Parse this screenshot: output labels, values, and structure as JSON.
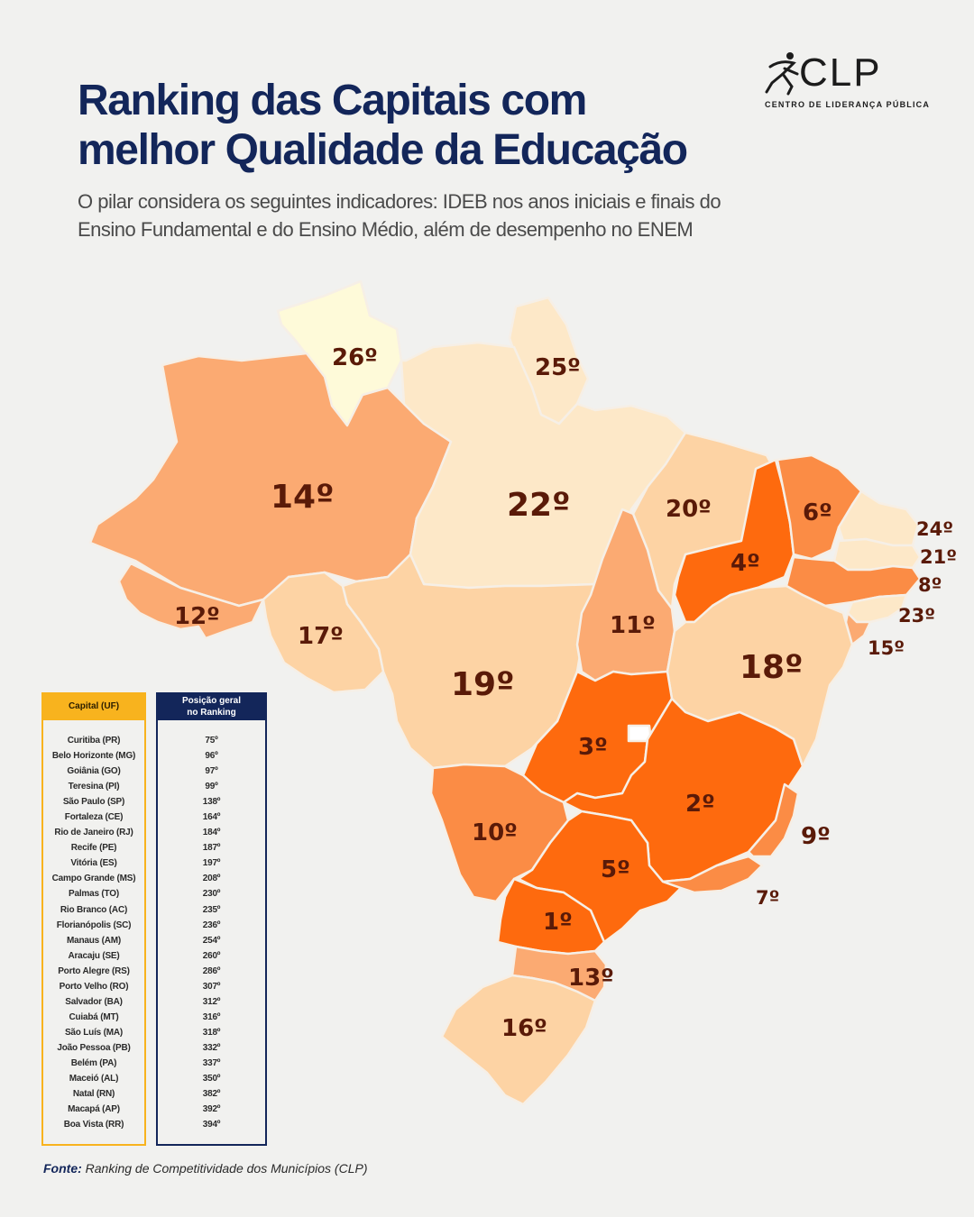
{
  "title_lines": [
    "Ranking das Capitais com",
    "melhor Qualidade da Educação"
  ],
  "subtitle_lines": [
    "O pilar considera os seguintes indicadores: IDEB nos anos iniciais e finais do",
    "Ensino Fundamental e do Ensino Médio, além de desempenho no ENEM"
  ],
  "logo": {
    "name": "CLP",
    "tagline": "CENTRO DE LIDERANÇA PÚBLICA",
    "icon": "runner-icon"
  },
  "colors": {
    "rank_1_5": "#fe6a0e",
    "rank_6_10": "#fb8c45",
    "rank_11_15": "#fbaa72",
    "rank_16_20": "#fdd3a4",
    "rank_21_25": "#fde8c8",
    "rank_26": "#fefad9",
    "table_capital_header": "#f8b31e",
    "table_position_header": "#13265a",
    "rank_label": "#5a1a08"
  },
  "map": {
    "states": [
      {
        "uf": "RR",
        "rank": "26º"
      },
      {
        "uf": "AP",
        "rank": "25º"
      },
      {
        "uf": "AM",
        "rank": "14º"
      },
      {
        "uf": "PA",
        "rank": "22º"
      },
      {
        "uf": "MA",
        "rank": "20º"
      },
      {
        "uf": "CE",
        "rank": "6º"
      },
      {
        "uf": "RN",
        "rank": "24º"
      },
      {
        "uf": "PB",
        "rank": "21º"
      },
      {
        "uf": "PE",
        "rank": "8º"
      },
      {
        "uf": "AL",
        "rank": "23º"
      },
      {
        "uf": "SE",
        "rank": "15º"
      },
      {
        "uf": "PI",
        "rank": "4º"
      },
      {
        "uf": "AC",
        "rank": "12º"
      },
      {
        "uf": "RO",
        "rank": "17º"
      },
      {
        "uf": "MT",
        "rank": "19º"
      },
      {
        "uf": "TO",
        "rank": "11º"
      },
      {
        "uf": "BA",
        "rank": "18º"
      },
      {
        "uf": "GO",
        "rank": "3º"
      },
      {
        "uf": "MG",
        "rank": "2º"
      },
      {
        "uf": "ES",
        "rank": "9º"
      },
      {
        "uf": "MS",
        "rank": "10º"
      },
      {
        "uf": "SP",
        "rank": "5º"
      },
      {
        "uf": "RJ",
        "rank": "7º"
      },
      {
        "uf": "PR",
        "rank": "1º"
      },
      {
        "uf": "SC",
        "rank": "13º"
      },
      {
        "uf": "RS",
        "rank": "16º"
      }
    ]
  },
  "table": {
    "headers": {
      "capital": "Capital (UF)",
      "position_line1": "Posição geral",
      "position_line2": "no Ranking"
    },
    "rows": [
      {
        "capital": "Curitiba (PR)",
        "position": "75º"
      },
      {
        "capital": "Belo Horizonte (MG)",
        "position": "96º"
      },
      {
        "capital": "Goiânia (GO)",
        "position": "97º"
      },
      {
        "capital": "Teresina (PI)",
        "position": "99º"
      },
      {
        "capital": "São Paulo (SP)",
        "position": "138º"
      },
      {
        "capital": "Fortaleza (CE)",
        "position": "164º"
      },
      {
        "capital": "Rio de Janeiro (RJ)",
        "position": "184º"
      },
      {
        "capital": "Recife (PE)",
        "position": "187º"
      },
      {
        "capital": "Vitória (ES)",
        "position": "197º"
      },
      {
        "capital": "Campo Grande (MS)",
        "position": "208º"
      },
      {
        "capital": "Palmas (TO)",
        "position": "230º"
      },
      {
        "capital": "Rio Branco (AC)",
        "position": "235º"
      },
      {
        "capital": "Florianópolis (SC)",
        "position": "236º"
      },
      {
        "capital": "Manaus (AM)",
        "position": "254º"
      },
      {
        "capital": "Aracaju (SE)",
        "position": "260º"
      },
      {
        "capital": "Porto Alegre (RS)",
        "position": "286º"
      },
      {
        "capital": "Porto Velho (RO)",
        "position": "307º"
      },
      {
        "capital": "Salvador (BA)",
        "position": "312º"
      },
      {
        "capital": "Cuiabá (MT)",
        "position": "316º"
      },
      {
        "capital": "São Luís (MA)",
        "position": "318º"
      },
      {
        "capital": "João Pessoa (PB)",
        "position": "332º"
      },
      {
        "capital": "Belém (PA)",
        "position": "337º"
      },
      {
        "capital": "Maceió (AL)",
        "position": "350º"
      },
      {
        "capital": "Natal (RN)",
        "position": "382º"
      },
      {
        "capital": "Macapá (AP)",
        "position": "392º"
      },
      {
        "capital": "Boa Vista (RR)",
        "position": "394º"
      }
    ]
  },
  "source": {
    "label": "Fonte:",
    "text": "Ranking de Competitividade dos  Municípios (CLP)"
  }
}
